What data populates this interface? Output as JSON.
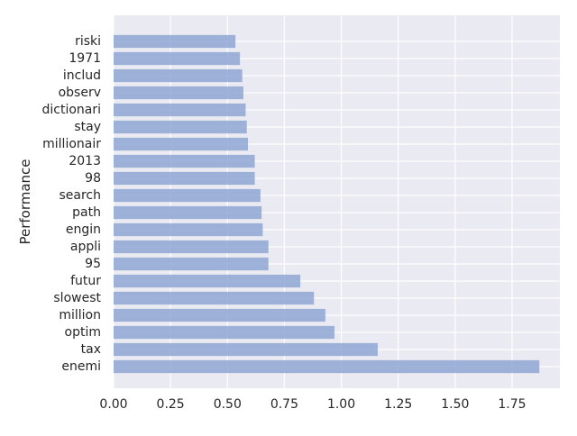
{
  "chart_data": {
    "type": "bar",
    "orientation": "horizontal",
    "ylabel": "Performance",
    "xlabel": "",
    "title": "",
    "categories": [
      "enemi",
      "tax",
      "optim",
      "million",
      "slowest",
      "futur",
      "95",
      "appli",
      "engin",
      "path",
      "search",
      "98",
      "2013",
      "millionair",
      "stay",
      "dictionari",
      "observ",
      "includ",
      "1971",
      "riski"
    ],
    "values": [
      1.87,
      1.16,
      0.97,
      0.93,
      0.88,
      0.82,
      0.68,
      0.68,
      0.655,
      0.65,
      0.645,
      0.62,
      0.62,
      0.59,
      0.585,
      0.58,
      0.57,
      0.565,
      0.555,
      0.535
    ],
    "xlim": [
      0.0,
      1.96
    ],
    "xticks": [
      "0.00",
      "0.25",
      "0.50",
      "0.75",
      "1.00",
      "1.25",
      "1.50",
      "1.75"
    ],
    "xtick_values": [
      0.0,
      0.25,
      0.5,
      0.75,
      1.0,
      1.25,
      1.5,
      1.75
    ],
    "grid": true,
    "style": "seaborn-darkgrid",
    "colors": {
      "bar": "#8fa6d4",
      "plot_background": "#eaeaf2",
      "grid": "#ffffff"
    }
  }
}
